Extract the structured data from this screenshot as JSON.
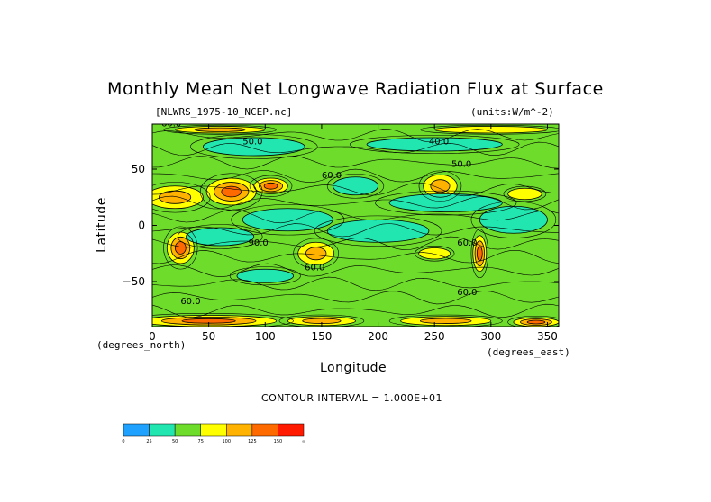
{
  "chart_data": {
    "type": "heatmap",
    "title": "Monthly Mean Net Longwave Radiation Flux at Surface",
    "file_label": "[NLWRS_1975-10_NCEP.nc]",
    "units_label": "(units:W/m^-2)",
    "xlabel": "Longitude",
    "ylabel": "Latitude",
    "x_units_label": "(degrees_north)",
    "y_units_label": "(degrees_east)",
    "contour_note": "CONTOUR INTERVAL = 1.000E+01",
    "xlim": [
      0,
      360
    ],
    "ylim": [
      -90,
      90
    ],
    "x_ticks": [
      0,
      50,
      100,
      150,
      200,
      250,
      300,
      350
    ],
    "y_ticks": [
      50,
      0,
      -50
    ],
    "y_tick_labels": [
      "50",
      "0",
      "−50"
    ],
    "contour_labels": [
      "60.0",
      "50.0",
      "60.0",
      "40.0",
      "50.0",
      "60.0",
      "90.0",
      "60.0",
      "60.0",
      "60.0"
    ],
    "colorbar": {
      "levels": [
        "0",
        "25",
        "50",
        "75",
        "100",
        "125",
        "150",
        "∞"
      ],
      "colors": [
        "#1fa2ff",
        "#22e6b0",
        "#6ddc2a",
        "#ffff00",
        "#ffb300",
        "#ff6a00",
        "#ff1a00"
      ]
    },
    "blobs": [
      {
        "lon": 20,
        "lat": 25,
        "rx": 25,
        "ry": 10,
        "level": 4
      },
      {
        "lon": 70,
        "lat": 30,
        "rx": 22,
        "ry": 12,
        "level": 5
      },
      {
        "lon": 105,
        "lat": 35,
        "rx": 15,
        "ry": 7,
        "level": 5
      },
      {
        "lon": 25,
        "lat": -20,
        "rx": 12,
        "ry": 14,
        "level": 5
      },
      {
        "lon": 145,
        "lat": -25,
        "rx": 16,
        "ry": 10,
        "level": 4
      },
      {
        "lon": 255,
        "lat": 35,
        "rx": 15,
        "ry": 10,
        "level": 4
      },
      {
        "lon": 290,
        "lat": -25,
        "rx": 6,
        "ry": 16,
        "level": 5
      },
      {
        "lon": 250,
        "lat": -25,
        "rx": 14,
        "ry": 5,
        "level": 3
      },
      {
        "lon": 330,
        "lat": 28,
        "rx": 15,
        "ry": 5,
        "level": 3
      },
      {
        "lon": 180,
        "lat": 35,
        "rx": 20,
        "ry": 8,
        "level": 1
      },
      {
        "lon": 260,
        "lat": 20,
        "rx": 50,
        "ry": 8,
        "level": 1
      },
      {
        "lon": 120,
        "lat": 5,
        "rx": 40,
        "ry": 10,
        "level": 1
      },
      {
        "lon": 200,
        "lat": -5,
        "rx": 45,
        "ry": 10,
        "level": 1
      },
      {
        "lon": 60,
        "lat": -10,
        "rx": 30,
        "ry": 8,
        "level": 1
      },
      {
        "lon": 320,
        "lat": 5,
        "rx": 30,
        "ry": 12,
        "level": 1
      },
      {
        "lon": 100,
        "lat": -45,
        "rx": 25,
        "ry": 6,
        "level": 1
      },
      {
        "lon": 90,
        "lat": 70,
        "rx": 45,
        "ry": 8,
        "level": 1
      },
      {
        "lon": 250,
        "lat": 72,
        "rx": 60,
        "ry": 6,
        "level": 1
      },
      {
        "lon": 50,
        "lat": -85,
        "rx": 60,
        "ry": 5,
        "level": 5
      },
      {
        "lon": 150,
        "lat": -85,
        "rx": 30,
        "ry": 4,
        "level": 4
      },
      {
        "lon": 260,
        "lat": -85,
        "rx": 40,
        "ry": 4,
        "level": 4
      },
      {
        "lon": 340,
        "lat": -86,
        "rx": 20,
        "ry": 4,
        "level": 5
      },
      {
        "lon": 60,
        "lat": 85,
        "rx": 40,
        "ry": 3,
        "level": 4
      },
      {
        "lon": 300,
        "lat": 85,
        "rx": 50,
        "ry": 3,
        "level": 3
      }
    ]
  }
}
